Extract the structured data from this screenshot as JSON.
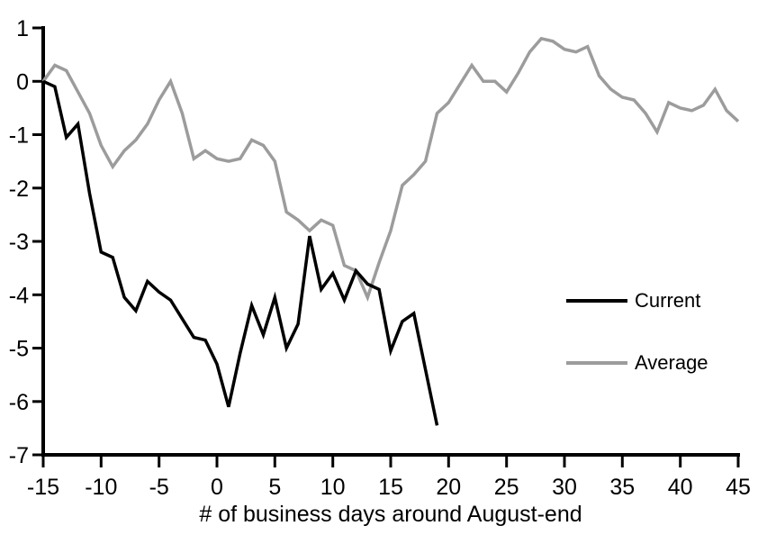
{
  "chart_data": {
    "type": "line",
    "title": "",
    "xlabel": "# of business days around August-end",
    "ylabel": "",
    "xlim": [
      -15,
      45
    ],
    "ylim": [
      -7,
      1
    ],
    "grid": false,
    "x_ticks": [
      -15,
      -10,
      -5,
      0,
      5,
      10,
      15,
      20,
      25,
      30,
      35,
      40,
      45
    ],
    "y_ticks": [
      1,
      0,
      -1,
      -2,
      -3,
      -4,
      -5,
      -6,
      -7
    ],
    "legend_position": "middle-right",
    "series": [
      {
        "name": "Current",
        "color": "#000000",
        "x": [
          -15,
          -14,
          -13,
          -12,
          -11,
          -10,
          -9,
          -8,
          -7,
          -6,
          -5,
          -4,
          -3,
          -2,
          -1,
          0,
          1,
          2,
          3,
          4,
          5,
          6,
          7,
          8,
          9,
          10,
          11,
          12,
          13,
          14,
          15,
          16,
          17,
          18,
          19
        ],
        "values": [
          0,
          -0.1,
          -1.05,
          -0.8,
          -2.1,
          -3.2,
          -3.3,
          -4.05,
          -4.3,
          -3.75,
          -3.95,
          -4.1,
          -4.45,
          -4.8,
          -4.85,
          -5.3,
          -6.1,
          -5.1,
          -4.2,
          -4.75,
          -4.05,
          -5.0,
          -4.55,
          -2.9,
          -3.9,
          -3.6,
          -4.1,
          -3.55,
          -3.8,
          -3.9,
          -5.05,
          -4.5,
          -4.35,
          -5.4,
          -6.45
        ]
      },
      {
        "name": "Average",
        "color": "#9C9C9C",
        "x": [
          -15,
          -14,
          -13,
          -12,
          -11,
          -10,
          -9,
          -8,
          -7,
          -6,
          -5,
          -4,
          -3,
          -2,
          -1,
          0,
          1,
          2,
          3,
          4,
          5,
          6,
          7,
          8,
          9,
          10,
          11,
          12,
          13,
          14,
          15,
          16,
          17,
          18,
          19,
          20,
          21,
          22,
          23,
          24,
          25,
          26,
          27,
          28,
          29,
          30,
          31,
          32,
          33,
          34,
          35,
          36,
          37,
          38,
          39,
          40,
          41,
          42,
          43,
          44,
          45
        ],
        "values": [
          0,
          0.3,
          0.2,
          -0.2,
          -0.6,
          -1.2,
          -1.6,
          -1.3,
          -1.1,
          -0.8,
          -0.35,
          0,
          -0.6,
          -1.45,
          -1.3,
          -1.45,
          -1.5,
          -1.45,
          -1.1,
          -1.2,
          -1.5,
          -2.45,
          -2.6,
          -2.8,
          -2.6,
          -2.7,
          -3.45,
          -3.55,
          -4.05,
          -3.4,
          -2.8,
          -1.95,
          -1.75,
          -1.5,
          -0.6,
          -0.4,
          -0.05,
          0.3,
          0,
          0,
          -0.2,
          0.15,
          0.55,
          0.8,
          0.75,
          0.6,
          0.55,
          0.65,
          0.1,
          -0.15,
          -0.3,
          -0.35,
          -0.6,
          -0.95,
          -0.4,
          -0.5,
          -0.55,
          -0.45,
          -0.15,
          -0.55,
          -0.75
        ]
      }
    ],
    "axis_color": "#000000",
    "background_color": "#FFFFFF"
  }
}
